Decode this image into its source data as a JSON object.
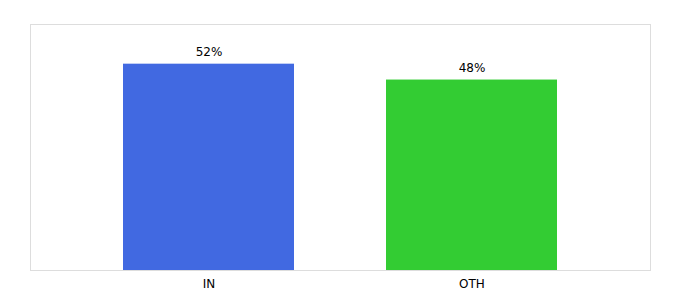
{
  "chart_data": {
    "type": "bar",
    "categories": [
      "IN",
      "OTH"
    ],
    "values": [
      52,
      48
    ],
    "value_labels": [
      "52%",
      "48%"
    ],
    "colors": [
      "#4169e1",
      "#33cc33"
    ],
    "ylim": [
      0,
      62
    ],
    "data_labels": true,
    "tick_labels": "x",
    "grid": false
  }
}
